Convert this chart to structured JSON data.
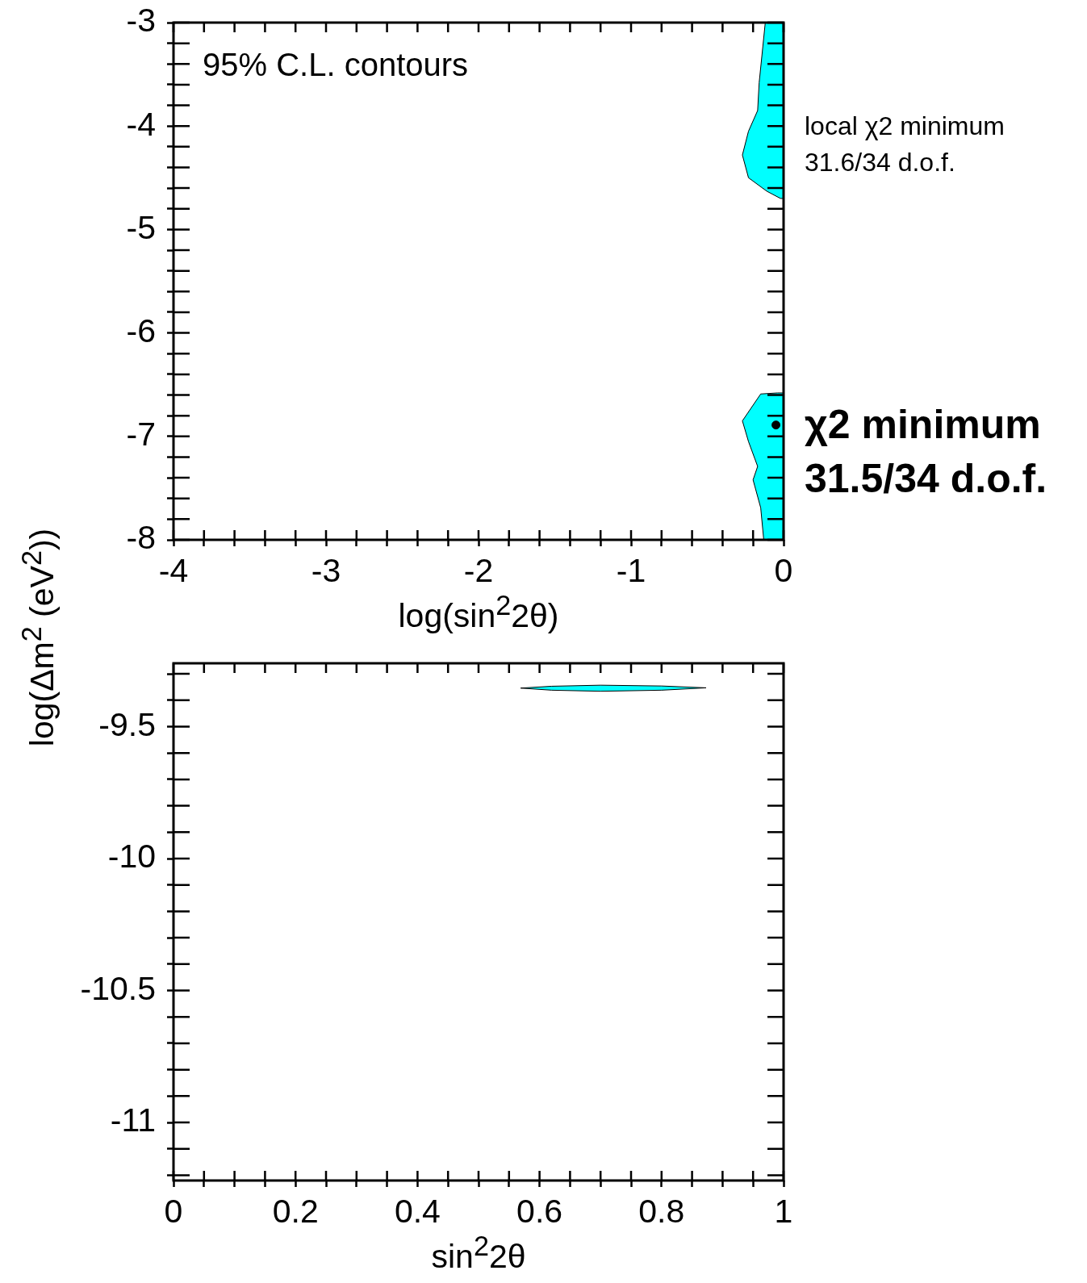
{
  "chart_data": [
    {
      "type": "area",
      "xlabel": "log(sin$^{2}$2θ)",
      "ylabel": "log(Δm$^{2}$ (eV$^{2}$))",
      "annotations": [
        "95% C.L. contours",
        {
          "text": "local χ2 minimum\n31.6/34 d.o.f.",
          "x": 0,
          "y": -4.0
        },
        {
          "text": "χ2 minimum\n31.5/34 d.o.f.",
          "x": 0,
          "y": -6.89
        }
      ],
      "series": [
        {
          "type": "area",
          "color": "#00ffff",
          "x": [
            -0.12,
            -0.16,
            -0.17,
            -0.23,
            -0.27,
            -0.23,
            -0.11,
            -0.02,
            0,
            0,
            -0.12
          ],
          "values": [
            -3,
            -3.58,
            -3.85,
            -4.05,
            -4.28,
            -4.5,
            -4.63,
            -4.7,
            -4.7,
            -3,
            -3
          ]
        },
        {
          "type": "area",
          "color": "#00ffff",
          "x": [
            -0.04,
            -0.15,
            -0.27,
            -0.23,
            -0.17,
            -0.2,
            -0.15,
            -0.13,
            0,
            0,
            -0.04
          ],
          "values": [
            -6.58,
            -6.59,
            -6.85,
            -7.05,
            -7.29,
            -7.42,
            -7.69,
            -8,
            -8,
            -6.58,
            -6.58
          ]
        },
        {
          "type": "scatter",
          "color": "#000000",
          "marker": "circle",
          "x": [
            -0.05
          ],
          "values": [
            -6.89
          ]
        }
      ],
      "xlim": [
        -4,
        0
      ],
      "ylim": [
        -8,
        -3
      ],
      "xticks": [
        -4,
        {
          "value": -3.8,
          "label": null
        },
        {
          "value": -3.6,
          "label": null
        },
        {
          "value": -3.4,
          "label": null
        },
        {
          "value": -3.2,
          "label": null
        },
        -3,
        {
          "value": -2.8,
          "label": null
        },
        {
          "value": -2.6,
          "label": null
        },
        {
          "value": -2.4,
          "label": null
        },
        {
          "value": -2.2,
          "label": null
        },
        -2,
        {
          "value": -1.8,
          "label": null
        },
        {
          "value": -1.6,
          "label": null
        },
        {
          "value": -1.4,
          "label": null
        },
        {
          "value": -1.2,
          "label": null
        },
        -1,
        {
          "value": -0.8,
          "label": null
        },
        {
          "value": -0.6,
          "label": null
        },
        {
          "value": -0.4,
          "label": null
        },
        {
          "value": -0.2,
          "label": null
        },
        0
      ],
      "yticks": [
        -8,
        {
          "value": -7.8,
          "label": null
        },
        {
          "value": -7.6,
          "label": null
        },
        {
          "value": -7.4,
          "label": null
        },
        {
          "value": -7.2,
          "label": null
        },
        -7,
        {
          "value": -6.8,
          "label": null
        },
        {
          "value": -6.6,
          "label": null
        },
        {
          "value": -6.4,
          "label": null
        },
        {
          "value": -6.2,
          "label": null
        },
        -6,
        {
          "value": -5.8,
          "label": null
        },
        {
          "value": -5.6,
          "label": null
        },
        {
          "value": -5.4,
          "label": null
        },
        {
          "value": -5.2,
          "label": null
        },
        -5,
        {
          "value": -4.8,
          "label": null
        },
        {
          "value": -4.6,
          "label": null
        },
        {
          "value": -4.4,
          "label": null
        },
        {
          "value": -4.2,
          "label": null
        },
        -4,
        {
          "value": -3.8,
          "label": null
        },
        {
          "value": -3.6,
          "label": null
        },
        {
          "value": -3.4,
          "label": null
        },
        {
          "value": -3.2,
          "label": null
        },
        -3
      ],
      "grid": false,
      "legend": false
    },
    {
      "type": "area",
      "xlabel": "sin$^{2}$2θ",
      "series": [
        {
          "type": "area",
          "color": "#00ffff",
          "x": [
            0.569,
            0.62,
            0.7,
            0.8,
            0.873,
            0.8,
            0.7,
            0.62,
            0.569
          ],
          "values": [
            -9.354,
            -9.347,
            -9.343,
            -9.346,
            -9.353,
            -9.362,
            -9.366,
            -9.362,
            -9.354
          ]
        }
      ],
      "xlim": [
        0,
        1
      ],
      "ylim": [
        -11.22,
        -9.26
      ],
      "xticks": [
        0,
        {
          "value": 0.05,
          "label": null
        },
        {
          "value": 0.1,
          "label": null
        },
        {
          "value": 0.15,
          "label": null
        },
        0.2,
        {
          "value": 0.25,
          "label": null
        },
        {
          "value": 0.3,
          "label": null
        },
        {
          "value": 0.35,
          "label": null
        },
        0.4,
        {
          "value": 0.45,
          "label": null
        },
        {
          "value": 0.5,
          "label": null
        },
        {
          "value": 0.55,
          "label": null
        },
        0.6,
        {
          "value": 0.65,
          "label": null
        },
        {
          "value": 0.7,
          "label": null
        },
        {
          "value": 0.75,
          "label": null
        },
        0.8,
        {
          "value": 0.85,
          "label": null
        },
        {
          "value": 0.9,
          "label": null
        },
        {
          "value": 0.95,
          "label": null
        },
        1
      ],
      "yticks": [
        {
          "value": -11.2,
          "label": null
        },
        {
          "value": -11.1,
          "label": null
        },
        -11,
        {
          "value": -10.9,
          "label": null
        },
        {
          "value": -10.8,
          "label": null
        },
        {
          "value": -10.7,
          "label": null
        },
        {
          "value": -10.6,
          "label": null
        },
        -10.5,
        {
          "value": -10.4,
          "label": null
        },
        {
          "value": -10.3,
          "label": null
        },
        {
          "value": -10.2,
          "label": null
        },
        {
          "value": -10.1,
          "label": null
        },
        -10,
        {
          "value": -9.9,
          "label": null
        },
        {
          "value": -9.8,
          "label": null
        },
        {
          "value": -9.7,
          "label": null
        },
        {
          "value": -9.6,
          "label": null
        },
        -9.5,
        {
          "value": -9.4,
          "label": null
        },
        {
          "value": -9.3,
          "label": null
        }
      ],
      "grid": false,
      "legend": false
    }
  ]
}
